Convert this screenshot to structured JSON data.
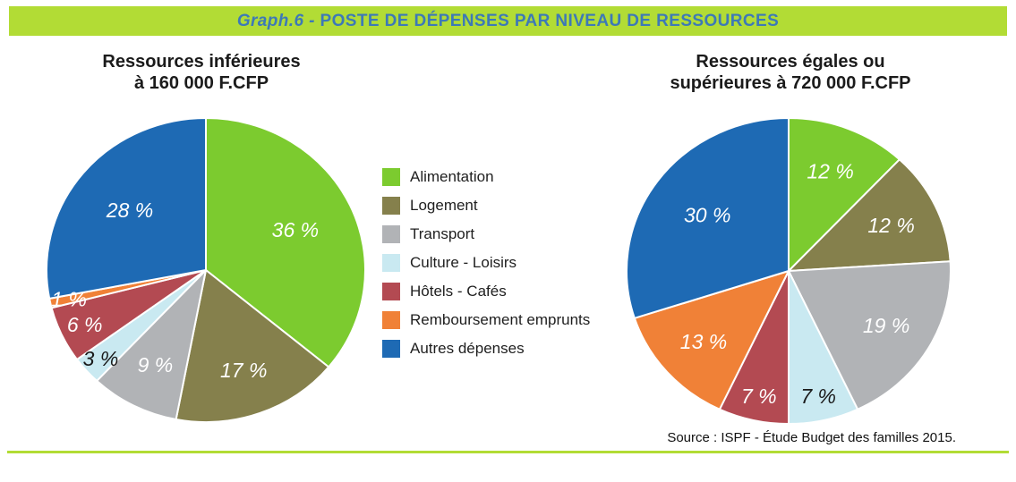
{
  "header": {
    "prefix": "Graph.6",
    "separator": " - ",
    "title": "POSTE DE DÉPENSES PAR NIVEAU DE RESSOURCES",
    "bg_color": "#b2dc35",
    "text_color": "#3d79b7"
  },
  "source": "Source : ISPF - Étude Budget des familles 2015.",
  "accent_colors": {
    "lime": "#b2dc35",
    "header_text_blue": "#3d79b7"
  },
  "legend": {
    "items": [
      {
        "label": "Alimentation",
        "color": "#7ccb2f"
      },
      {
        "label": "Logement",
        "color": "#85804c"
      },
      {
        "label": "Transport",
        "color": "#b1b3b6"
      },
      {
        "label": "Culture - Loisirs",
        "color": "#c9e9f1"
      },
      {
        "label": "Hôtels - Cafés",
        "color": "#b34a52"
      },
      {
        "label": "Remboursement emprunts",
        "color": "#f08137"
      },
      {
        "label": "Autres dépenses",
        "color": "#1e6ab4"
      }
    ]
  },
  "chart_data": [
    {
      "type": "pie",
      "title": "Ressources inférieures\nà 160 000 F.CFP",
      "unit": "%",
      "start_angle_deg": 0,
      "direction": "clockwise",
      "segments": [
        {
          "label": "Alimentation",
          "value": 36,
          "color": "#7ccb2f",
          "label_color": "#ffffff"
        },
        {
          "label": "Logement",
          "value": 17,
          "color": "#85804c",
          "label_color": "#ffffff"
        },
        {
          "label": "Transport",
          "value": 9,
          "color": "#b1b3b6",
          "label_color": "#ffffff"
        },
        {
          "label": "Culture - Loisirs",
          "value": 3,
          "color": "#c9e9f1",
          "label_color": "#1a1a1a"
        },
        {
          "label": "Hôtels - Cafés",
          "value": 6,
          "color": "#b34a52",
          "label_color": "#ffffff"
        },
        {
          "label": "Remboursement emprunts",
          "value": 1,
          "color": "#f08137",
          "label_color": "#ffffff"
        },
        {
          "label": "Autres dépenses",
          "value": 28,
          "color": "#1e6ab4",
          "label_color": "#ffffff"
        }
      ]
    },
    {
      "type": "pie",
      "title": "Ressources égales ou\nsupérieures à 720 000 F.CFP",
      "unit": "%",
      "start_angle_deg": 0,
      "direction": "clockwise",
      "segments": [
        {
          "label": "Alimentation",
          "value": 12,
          "color": "#7ccb2f",
          "label_color": "#ffffff"
        },
        {
          "label": "Logement",
          "value": 12,
          "color": "#85804c",
          "label_color": "#ffffff"
        },
        {
          "label": "Transport",
          "value": 19,
          "color": "#b1b3b6",
          "label_color": "#ffffff"
        },
        {
          "label": "Culture - Loisirs",
          "value": 7,
          "color": "#c9e9f1",
          "label_color": "#1a1a1a"
        },
        {
          "label": "Hôtels - Cafés",
          "value": 7,
          "color": "#b34a52",
          "label_color": "#ffffff"
        },
        {
          "label": "Remboursement emprunts",
          "value": 13,
          "color": "#f08137",
          "label_color": "#ffffff"
        },
        {
          "label": "Autres dépenses",
          "value": 30,
          "color": "#1e6ab4",
          "label_color": "#ffffff"
        }
      ]
    }
  ]
}
